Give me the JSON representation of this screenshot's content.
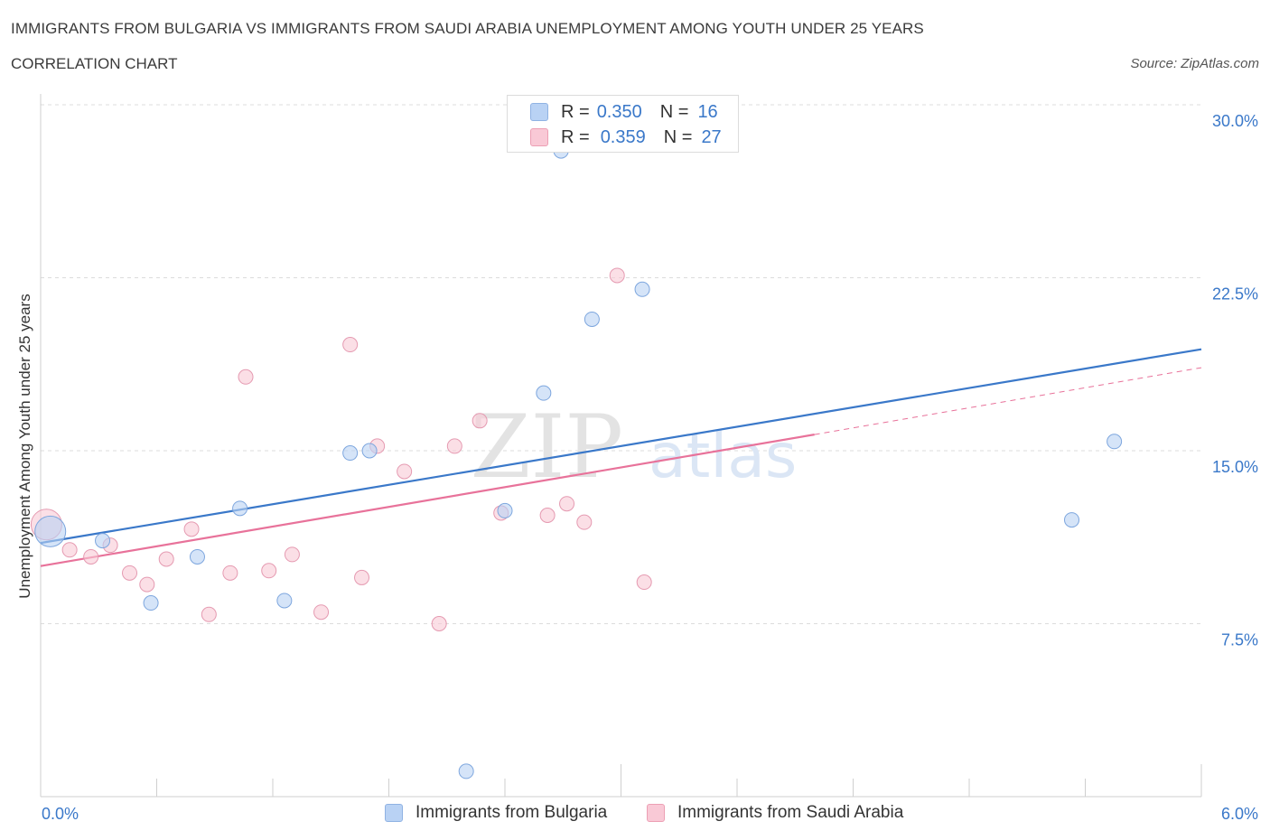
{
  "header": {
    "title": "IMMIGRANTS FROM BULGARIA VS IMMIGRANTS FROM SAUDI ARABIA UNEMPLOYMENT AMONG YOUTH UNDER 25 YEARS",
    "subtitle": "CORRELATION CHART",
    "source": "Source: ZipAtlas.com"
  },
  "legend_stats": {
    "bulgaria": {
      "r_label": "R =",
      "r_value": "0.350",
      "n_label": "N =",
      "n_value": "16"
    },
    "saudi": {
      "r_label": "R =",
      "r_value": "0.359",
      "n_label": "N =",
      "n_value": "27"
    }
  },
  "colors": {
    "bulgaria": "#3a78c9",
    "bulgaria_fill": "#b9d2f4",
    "saudi": "#e8729a",
    "saudi_fill": "#f9c9d6",
    "tick_label": "#3a78c9"
  },
  "chart_data": {
    "type": "scatter",
    "title": "IMMIGRANTS FROM BULGARIA VS IMMIGRANTS FROM SAUDI ARABIA UNEMPLOYMENT AMONG YOUTH UNDER 25 YEARS",
    "xlabel": "",
    "ylabel": "Unemployment Among Youth under 25 years",
    "xlim": [
      0,
      6
    ],
    "ylim": [
      0,
      30
    ],
    "x_tick_labels": [
      "0.0%",
      "6.0%"
    ],
    "y_ticks": [
      7.5,
      15.0,
      22.5,
      30.0
    ],
    "y_tick_labels": [
      "7.5%",
      "15.0%",
      "22.5%",
      "30.0%"
    ],
    "grid": true,
    "watermark": "ZIPatlas",
    "series": [
      {
        "name": "Immigrants from Bulgaria",
        "points": [
          [
            0.05,
            11.5
          ],
          [
            0.32,
            11.1
          ],
          [
            0.57,
            8.4
          ],
          [
            0.81,
            10.4
          ],
          [
            1.03,
            12.5
          ],
          [
            1.26,
            8.5
          ],
          [
            1.6,
            14.9
          ],
          [
            1.7,
            15.0
          ],
          [
            2.2,
            1.1
          ],
          [
            2.4,
            12.4
          ],
          [
            2.6,
            17.5
          ],
          [
            2.69,
            28.0
          ],
          [
            2.85,
            20.7
          ],
          [
            3.11,
            22.0
          ],
          [
            5.33,
            12.0
          ],
          [
            5.55,
            15.4
          ]
        ],
        "trend": {
          "x0": 0.0,
          "y0": 11.0,
          "x1": 6.0,
          "y1": 19.4
        }
      },
      {
        "name": "Immigrants from Saudi Arabia",
        "points": [
          [
            0.03,
            11.8
          ],
          [
            0.15,
            10.7
          ],
          [
            0.26,
            10.4
          ],
          [
            0.36,
            10.9
          ],
          [
            0.46,
            9.7
          ],
          [
            0.55,
            9.2
          ],
          [
            0.65,
            10.3
          ],
          [
            0.78,
            11.6
          ],
          [
            0.87,
            7.9
          ],
          [
            0.98,
            9.7
          ],
          [
            1.06,
            18.2
          ],
          [
            1.18,
            9.8
          ],
          [
            1.3,
            10.5
          ],
          [
            1.45,
            8.0
          ],
          [
            1.6,
            19.6
          ],
          [
            1.66,
            9.5
          ],
          [
            1.74,
            15.2
          ],
          [
            1.88,
            14.1
          ],
          [
            2.06,
            7.5
          ],
          [
            2.14,
            15.2
          ],
          [
            2.27,
            16.3
          ],
          [
            2.38,
            12.3
          ],
          [
            2.62,
            12.2
          ],
          [
            2.72,
            12.7
          ],
          [
            2.81,
            11.9
          ],
          [
            2.98,
            22.6
          ],
          [
            3.12,
            9.3
          ]
        ],
        "trend": {
          "x0": 0.0,
          "y0": 10.0,
          "x1": 4.0,
          "y1": 15.7
        },
        "trend_extension": {
          "x0": 4.0,
          "y0": 15.7,
          "x1": 6.0,
          "y1": 18.6
        }
      }
    ]
  },
  "bottom_legend": {
    "bulgaria_label": "Immigrants from Bulgaria",
    "saudi_label": "Immigrants from Saudi Arabia"
  }
}
